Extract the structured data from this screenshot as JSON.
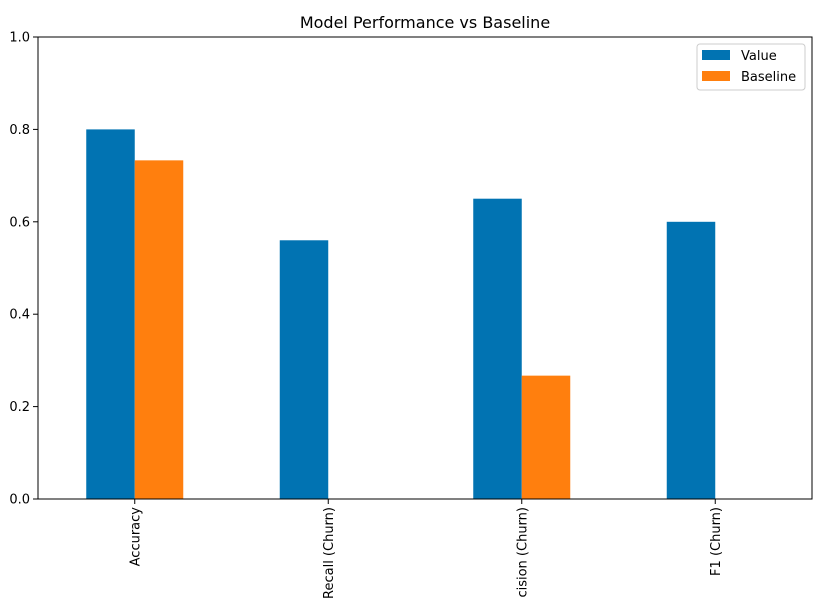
{
  "chart_data": {
    "type": "bar",
    "title": "Model Performance vs Baseline",
    "xlabel": "",
    "ylabel": "",
    "ylim": [
      0,
      1.0
    ],
    "yticks": [
      "0.0",
      "0.2",
      "0.4",
      "0.6",
      "0.8",
      "1.0"
    ],
    "categories": [
      "Accuracy",
      "Recall (Churn)",
      "Precision (Churn)",
      "F1 (Churn)"
    ],
    "series": [
      {
        "name": "Value",
        "color": "#0173b2",
        "values": [
          0.8,
          0.56,
          0.65,
          0.6
        ]
      },
      {
        "name": "Baseline",
        "color": "#ff7f0e",
        "values": [
          0.733,
          0,
          0.267,
          0
        ]
      }
    ],
    "legend": {
      "position": "top-right"
    },
    "grid": false
  }
}
